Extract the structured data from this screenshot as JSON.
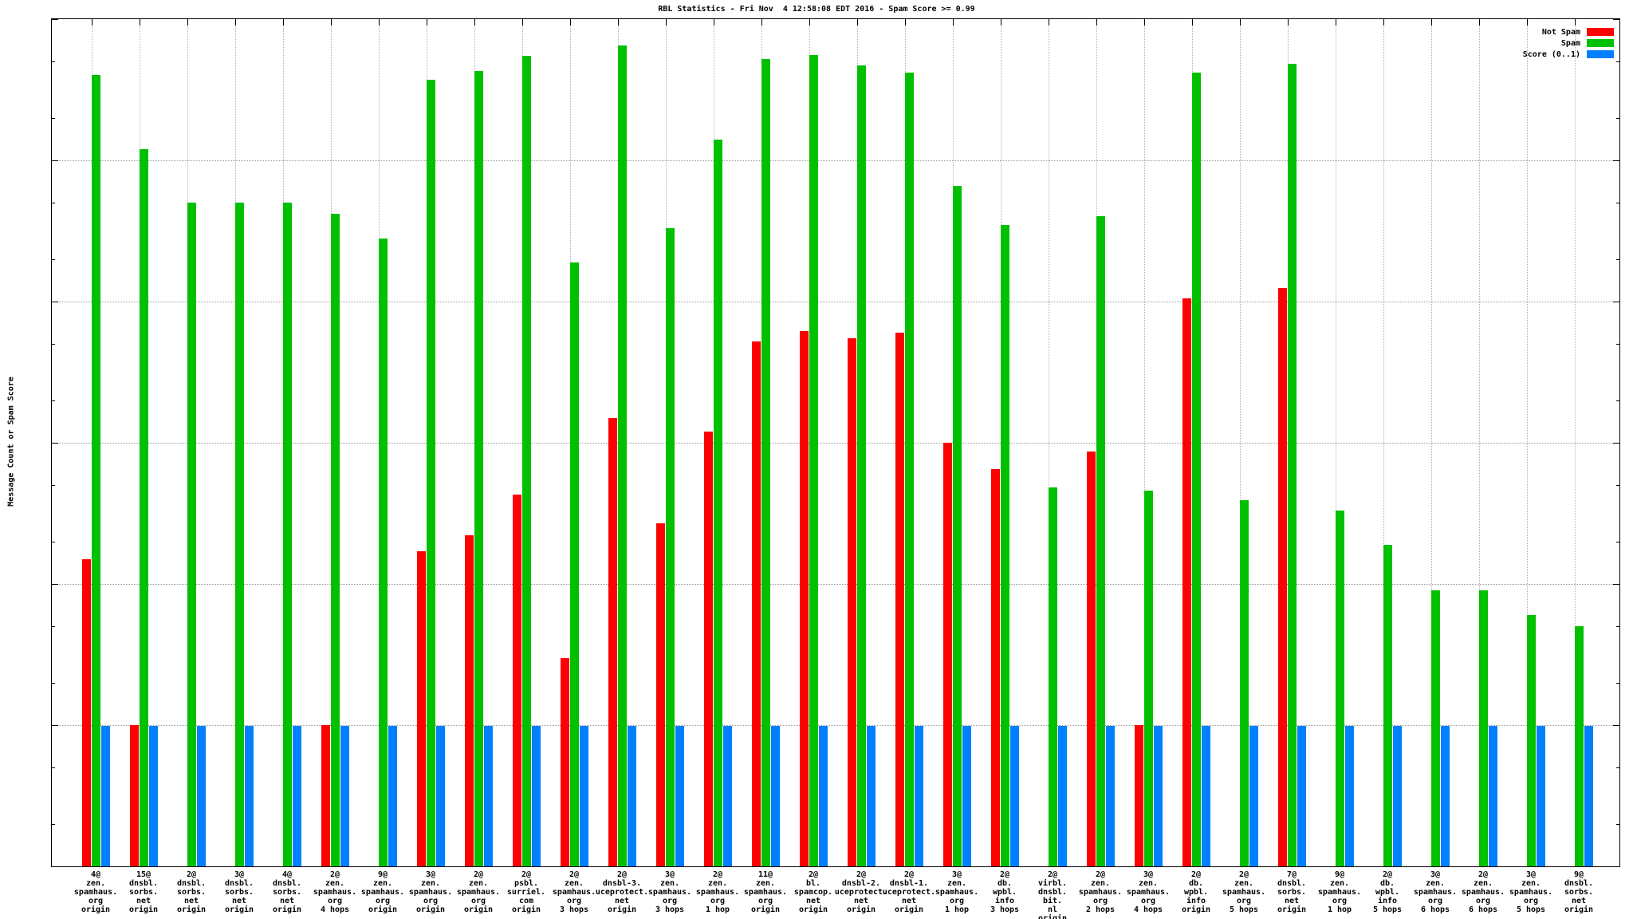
{
  "chart_data": {
    "type": "bar",
    "title": "RBL Statistics - Fri Nov  4 12:58:08 EDT 2016 - Spam Score >= 0.99",
    "ylabel": "Message Count or Spam Score",
    "yscale": "log",
    "ylim": [
      0.1,
      100000
    ],
    "ytick_labels": [
      "0.1",
      "1",
      "10",
      "100",
      "1000",
      "10000",
      "100000"
    ],
    "grid": true,
    "legend_position": "top-right",
    "legend": [
      {
        "label": "Not Spam",
        "color": "#ff0000"
      },
      {
        "label": "Spam",
        "color": "#00c000"
      },
      {
        "label": "Score (0..1)",
        "color": "#0080ff"
      }
    ],
    "series_names": [
      "Not Spam",
      "Spam",
      "Score (0..1)"
    ],
    "colors": {
      "not_spam": "#ff0000",
      "spam": "#00c000",
      "score": "#0080ff"
    },
    "groups": [
      {
        "label_lines": [
          "4@",
          "zen.",
          "spamhaus.",
          "org",
          "origin"
        ],
        "not_spam": 15,
        "spam": 40000,
        "score": 0.99
      },
      {
        "label_lines": [
          "15@",
          "dnsbl.",
          "sorbs.",
          "net",
          "origin"
        ],
        "not_spam": 1,
        "spam": 12000,
        "score": 0.99
      },
      {
        "label_lines": [
          "2@",
          "dnsbl.",
          "sorbs.",
          "net",
          "origin"
        ],
        "not_spam": null,
        "spam": 5000,
        "score": 0.99
      },
      {
        "label_lines": [
          "3@",
          "dnsbl.",
          "sorbs.",
          "net",
          "origin"
        ],
        "not_spam": null,
        "spam": 5000,
        "score": 0.99
      },
      {
        "label_lines": [
          "4@",
          "dnsbl.",
          "sorbs.",
          "net",
          "origin"
        ],
        "not_spam": null,
        "spam": 5000,
        "score": 0.99
      },
      {
        "label_lines": [
          "2@",
          "zen.",
          "spamhaus.",
          "org",
          "4 hops"
        ],
        "not_spam": 1,
        "spam": 4200,
        "score": 0.99
      },
      {
        "label_lines": [
          "9@",
          "zen.",
          "spamhaus.",
          "org",
          "origin"
        ],
        "not_spam": null,
        "spam": 2800,
        "score": 0.99
      },
      {
        "label_lines": [
          "3@",
          "zen.",
          "spamhaus.",
          "org",
          "origin"
        ],
        "not_spam": 17,
        "spam": 37000,
        "score": 0.99
      },
      {
        "label_lines": [
          "2@",
          "zen.",
          "spamhaus.",
          "org",
          "origin"
        ],
        "not_spam": 22,
        "spam": 43000,
        "score": 0.99
      },
      {
        "label_lines": [
          "2@",
          "psbl.",
          "surriel.",
          "com",
          "origin"
        ],
        "not_spam": 43,
        "spam": 55000,
        "score": 0.99
      },
      {
        "label_lines": [
          "2@",
          "zen.",
          "spamhaus.",
          "org",
          "3 hops"
        ],
        "not_spam": 3,
        "spam": 1900,
        "score": 0.99
      },
      {
        "label_lines": [
          "2@",
          "dnsbl-3.",
          "uceprotect.",
          "net",
          "origin"
        ],
        "not_spam": 150,
        "spam": 65000,
        "score": 0.99
      },
      {
        "label_lines": [
          "3@",
          "zen.",
          "spamhaus.",
          "org",
          "3 hops"
        ],
        "not_spam": 27,
        "spam": 3300,
        "score": 0.99
      },
      {
        "label_lines": [
          "2@",
          "zen.",
          "spamhaus.",
          "org",
          "1 hop"
        ],
        "not_spam": 120,
        "spam": 14000,
        "score": 0.99
      },
      {
        "label_lines": [
          "11@",
          "zen.",
          "spamhaus.",
          "org",
          "origin"
        ],
        "not_spam": 520,
        "spam": 52000,
        "score": 0.99
      },
      {
        "label_lines": [
          "2@",
          "bl.",
          "spamcop.",
          "net",
          "origin"
        ],
        "not_spam": 620,
        "spam": 56000,
        "score": 0.99
      },
      {
        "label_lines": [
          "2@",
          "dnsbl-2.",
          "uceprotect.",
          "net",
          "origin"
        ],
        "not_spam": 550,
        "spam": 47000,
        "score": 0.99
      },
      {
        "label_lines": [
          "2@",
          "dnsbl-1.",
          "uceprotect.",
          "net",
          "origin"
        ],
        "not_spam": 600,
        "spam": 42000,
        "score": 0.99
      },
      {
        "label_lines": [
          "3@",
          "zen.",
          "spamhaus.",
          "org",
          "1 hop"
        ],
        "not_spam": 100,
        "spam": 6600,
        "score": 0.99
      },
      {
        "label_lines": [
          "2@",
          "db.",
          "wpbl.",
          "info",
          "3 hops"
        ],
        "not_spam": 65,
        "spam": 3500,
        "score": 0.99
      },
      {
        "label_lines": [
          "2@",
          "virbl.",
          "dnsbl.",
          "bit.",
          "nl",
          "origin"
        ],
        "not_spam": null,
        "spam": 48,
        "score": 0.99
      },
      {
        "label_lines": [
          "2@",
          "zen.",
          "spamhaus.",
          "org",
          "2 hops"
        ],
        "not_spam": 87,
        "spam": 4000,
        "score": 0.99
      },
      {
        "label_lines": [
          "3@",
          "zen.",
          "spamhaus.",
          "org",
          "4 hops"
        ],
        "not_spam": 1,
        "spam": 46,
        "score": 0.99
      },
      {
        "label_lines": [
          "2@",
          "db.",
          "wpbl.",
          "info",
          "origin"
        ],
        "not_spam": 1050,
        "spam": 42000,
        "score": 0.99
      },
      {
        "label_lines": [
          "2@",
          "zen.",
          "spamhaus.",
          "org",
          "5 hops"
        ],
        "not_spam": null,
        "spam": 39,
        "score": 0.99
      },
      {
        "label_lines": [
          "7@",
          "dnsbl.",
          "sorbs.",
          "net",
          "origin"
        ],
        "not_spam": 1250,
        "spam": 48000,
        "score": 0.99
      },
      {
        "label_lines": [
          "9@",
          "zen.",
          "spamhaus.",
          "org",
          "1 hop"
        ],
        "not_spam": null,
        "spam": 33,
        "score": 0.99
      },
      {
        "label_lines": [
          "2@",
          "db.",
          "wpbl.",
          "info",
          "5 hops"
        ],
        "not_spam": null,
        "spam": 19,
        "score": 0.99
      },
      {
        "label_lines": [
          "3@",
          "zen.",
          "spamhaus.",
          "org",
          "6 hops"
        ],
        "not_spam": null,
        "spam": 9,
        "score": 0.99
      },
      {
        "label_lines": [
          "2@",
          "zen.",
          "spamhaus.",
          "org",
          "6 hops"
        ],
        "not_spam": null,
        "spam": 9,
        "score": 0.99
      },
      {
        "label_lines": [
          "3@",
          "zen.",
          "spamhaus.",
          "org",
          "5 hops"
        ],
        "not_spam": null,
        "spam": 6,
        "score": 0.99
      },
      {
        "label_lines": [
          "9@",
          "dnsbl.",
          "sorbs.",
          "net",
          "origin"
        ],
        "not_spam": null,
        "spam": 5,
        "score": 0.99
      }
    ]
  }
}
